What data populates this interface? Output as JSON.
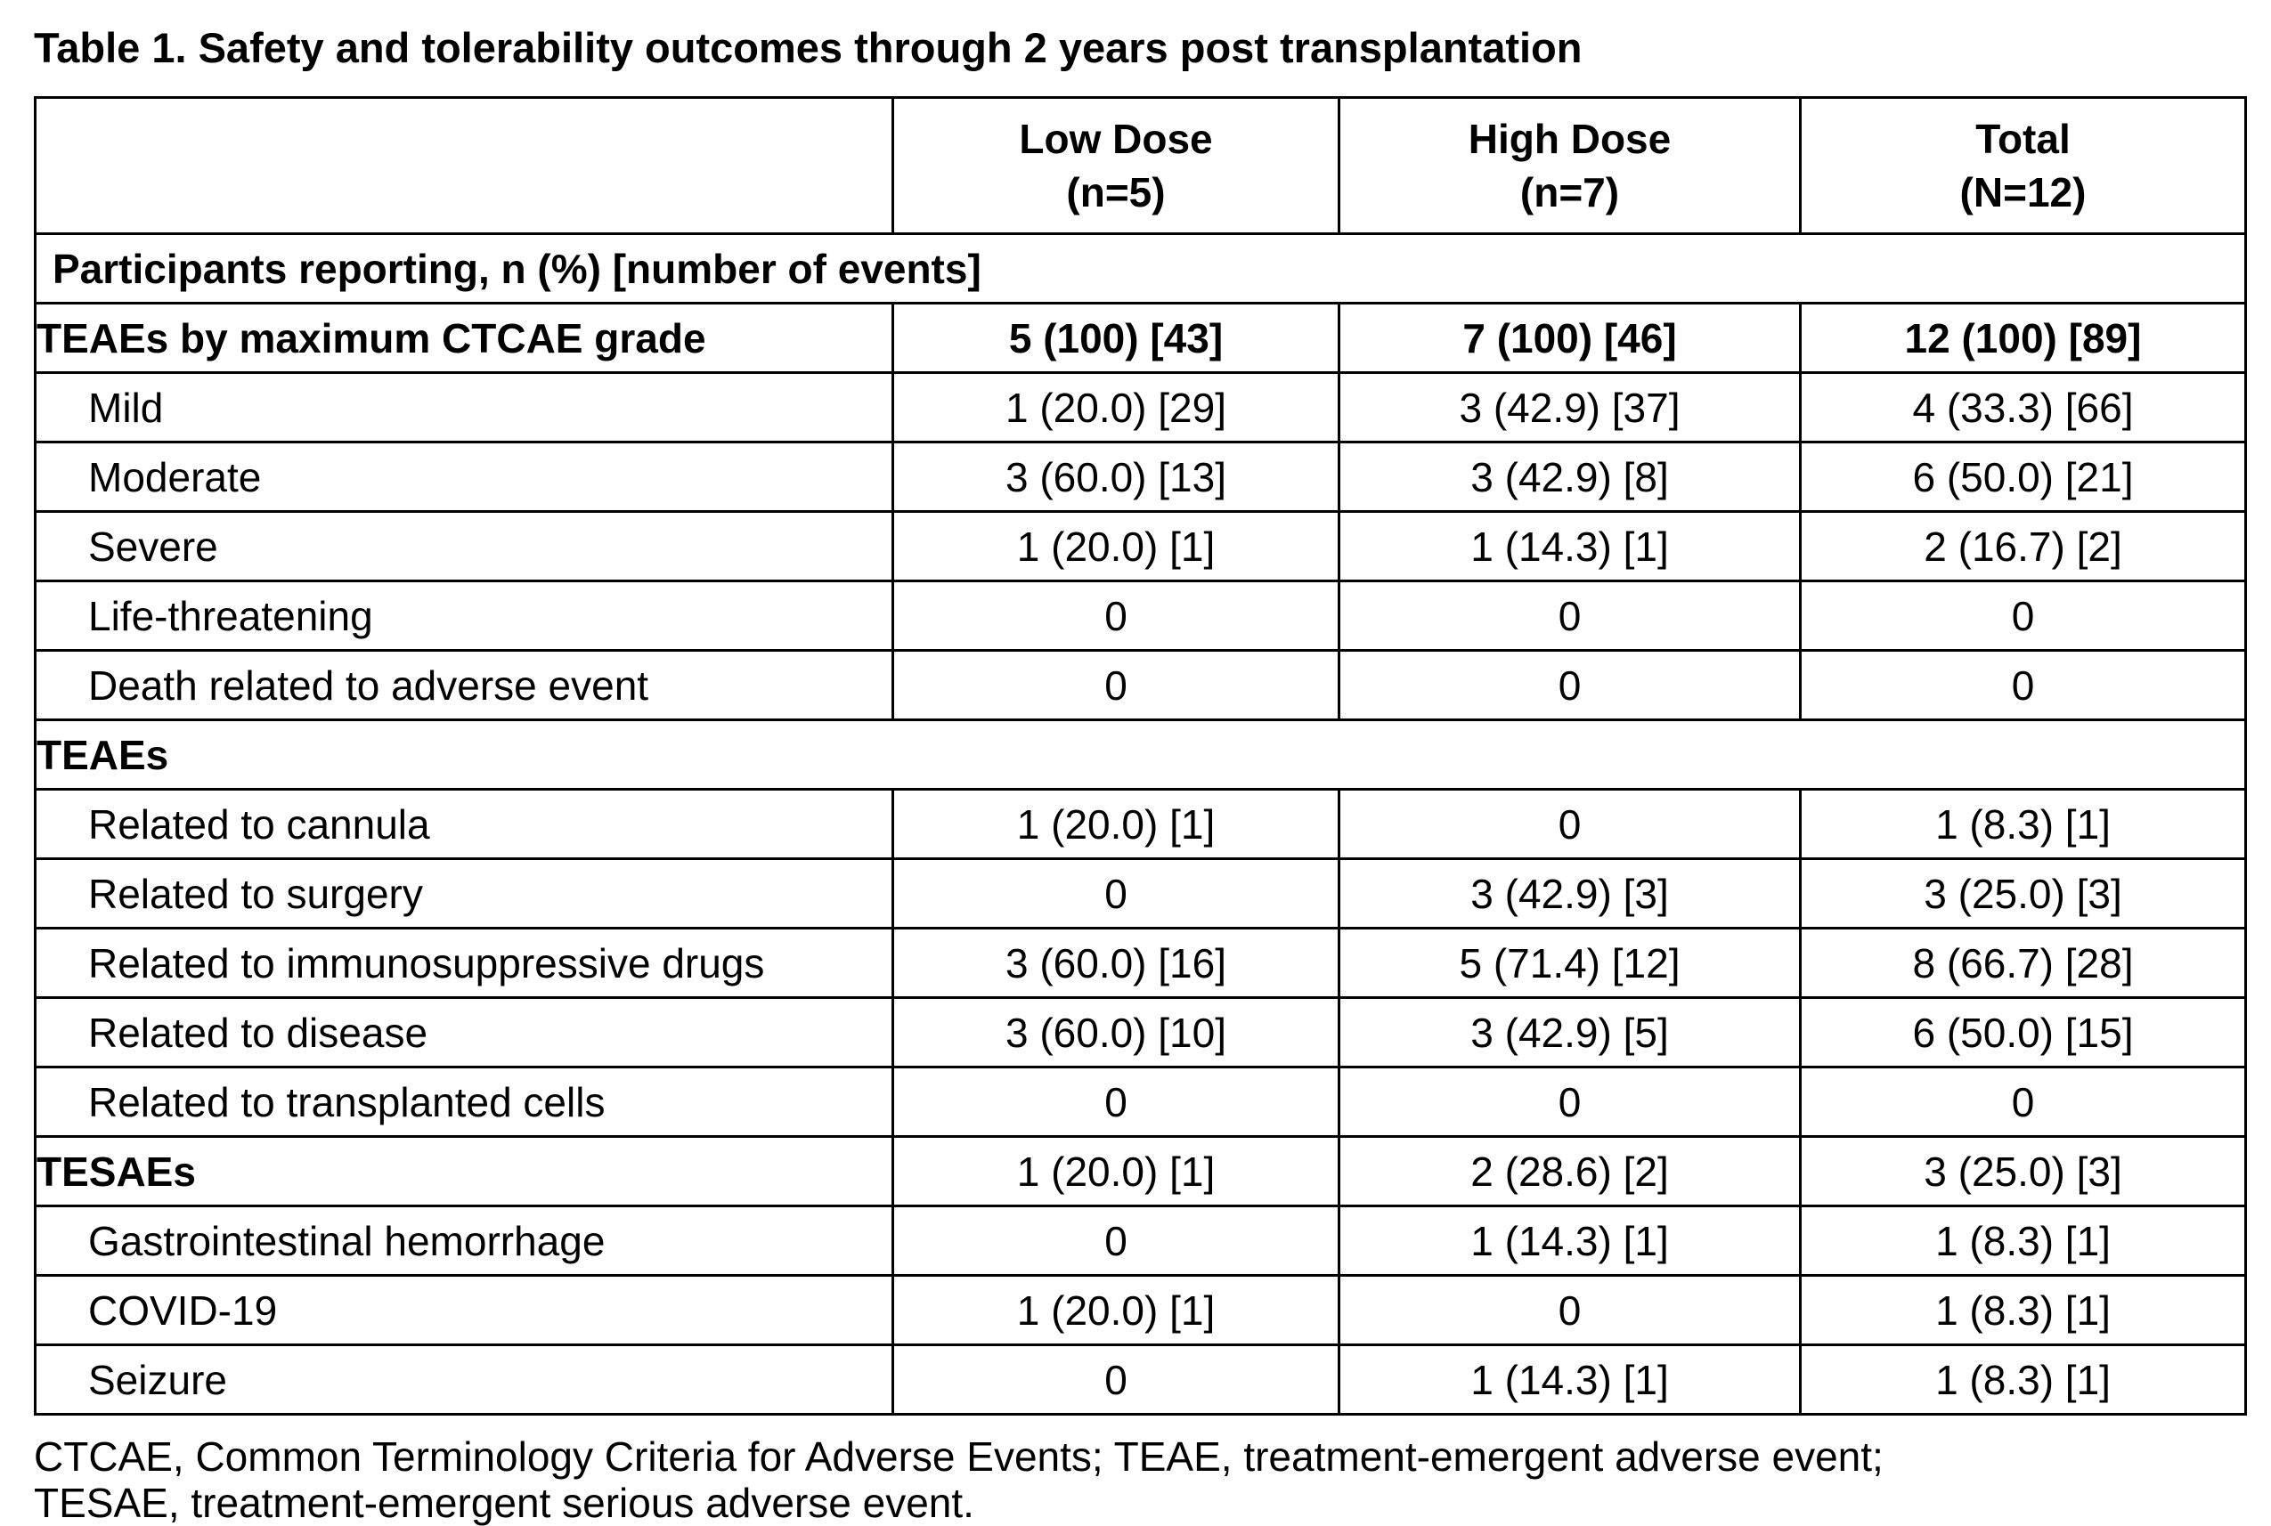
{
  "title": "Table 1. Safety and tolerability outcomes through 2 years post transplantation",
  "header": {
    "columns": [
      {
        "name": "Low Dose",
        "n": "(n=5)"
      },
      {
        "name": "High Dose",
        "n": "(n=7)"
      },
      {
        "name": "Total",
        "n": "(N=12)"
      }
    ]
  },
  "banner": "Participants reporting, n (%) [number of events]",
  "rows": [
    {
      "label": "TEAEs by maximum CTCAE grade",
      "values": [
        "5 (100) [43]",
        "7 (100) [46]",
        "12 (100) [89]"
      ]
    },
    {
      "label": "Mild",
      "values": [
        "1 (20.0) [29]",
        "3 (42.9) [37]",
        "4 (33.3) [66]"
      ]
    },
    {
      "label": "Moderate",
      "values": [
        "3 (60.0) [13]",
        "3 (42.9) [8]",
        "6 (50.0) [21]"
      ]
    },
    {
      "label": "Severe",
      "values": [
        "1 (20.0) [1]",
        "1 (14.3) [1]",
        "2 (16.7) [2]"
      ]
    },
    {
      "label": "Life-threatening",
      "values": [
        "0",
        "0",
        "0"
      ]
    },
    {
      "label": "Death related to adverse event",
      "values": [
        "0",
        "0",
        "0"
      ]
    },
    {
      "label": "TEAEs"
    },
    {
      "label": "Related to cannula",
      "values": [
        "1 (20.0) [1]",
        "0",
        "1 (8.3) [1]"
      ]
    },
    {
      "label": "Related to surgery",
      "values": [
        "0",
        "3 (42.9) [3]",
        "3 (25.0) [3]"
      ]
    },
    {
      "label": "Related to immunosuppressive drugs",
      "values": [
        "3 (60.0) [16]",
        "5 (71.4) [12]",
        "8 (66.7) [28]"
      ]
    },
    {
      "label": "Related to disease",
      "values": [
        "3 (60.0) [10]",
        "3 (42.9) [5]",
        "6 (50.0) [15]"
      ]
    },
    {
      "label": "Related to transplanted cells",
      "values": [
        "0",
        "0",
        "0"
      ]
    },
    {
      "label": "TESAEs",
      "values": [
        "1 (20.0) [1]",
        "2 (28.6) [2]",
        "3 (25.0) [3]"
      ]
    },
    {
      "label": "Gastrointestinal hemorrhage",
      "values": [
        "0",
        "1 (14.3) [1]",
        "1 (8.3) [1]"
      ]
    },
    {
      "label": "COVID-19",
      "values": [
        "1 (20.0) [1]",
        "0",
        "1 (8.3) [1]"
      ]
    },
    {
      "label": "Seizure",
      "values": [
        "0",
        "1 (14.3) [1]",
        "1 (8.3) [1]"
      ]
    }
  ],
  "footnote": {
    "line1": "CTCAE, Common Terminology Criteria for Adverse Events; TEAE, treatment-emergent adverse event;",
    "line2": "TESAE, treatment-emergent serious adverse event."
  }
}
